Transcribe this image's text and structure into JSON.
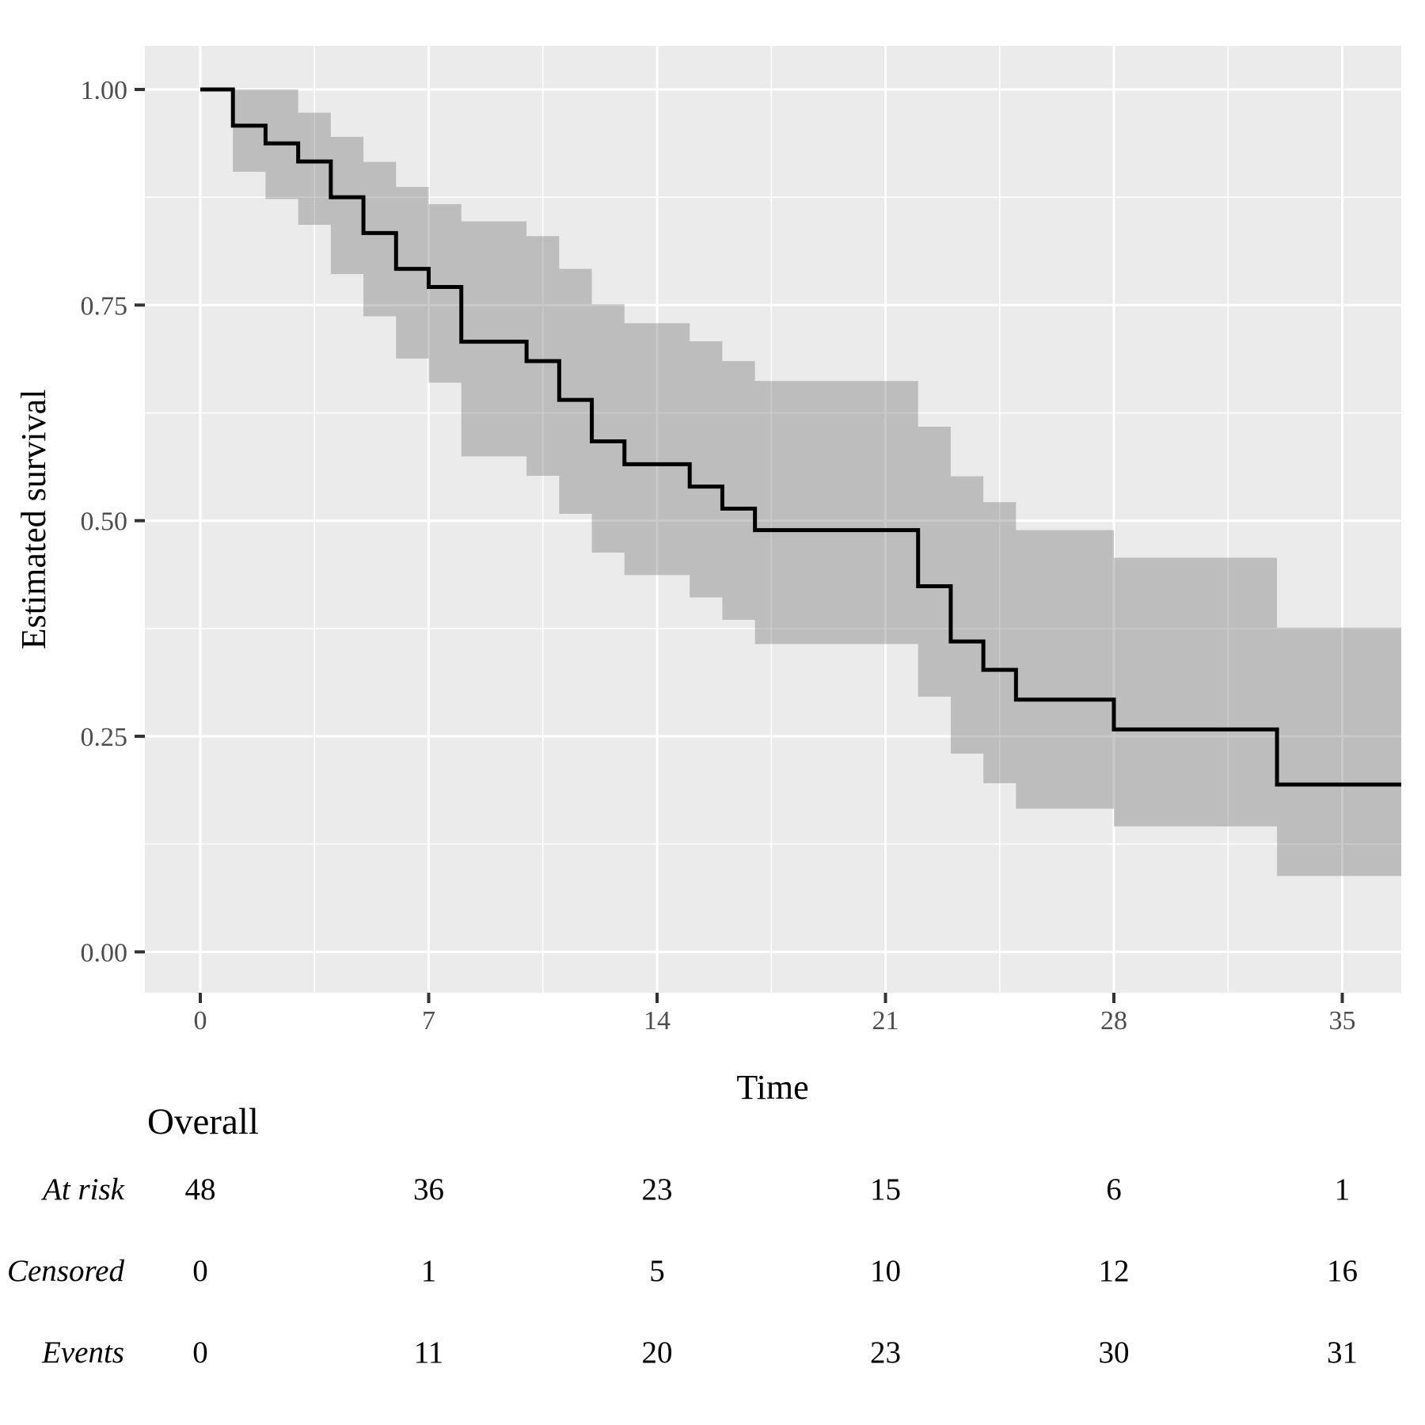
{
  "chart_data": {
    "type": "km-step",
    "title": "",
    "xlabel": "Time",
    "ylabel": "Estimated survival",
    "x_ticks": [
      0,
      7,
      14,
      21,
      28,
      35
    ],
    "y_ticks": [
      {
        "value": 1.0,
        "label": "1.00"
      },
      {
        "value": 0.75,
        "label": "0.75"
      },
      {
        "value": 0.5,
        "label": "0.50"
      },
      {
        "value": 0.25,
        "label": "0.25"
      },
      {
        "value": 0.0,
        "label": "0.00"
      }
    ],
    "xlim": [
      0,
      35
    ],
    "ylim": [
      0,
      1
    ],
    "grid": "on",
    "legend_position": "none",
    "surv_steps": [
      {
        "t": 0,
        "s": 1.0
      },
      {
        "t": 1,
        "s": 0.958
      },
      {
        "t": 2,
        "s": 0.9375
      },
      {
        "t": 3,
        "s": 0.9165
      },
      {
        "t": 4,
        "s": 0.875
      },
      {
        "t": 5,
        "s": 0.8335
      },
      {
        "t": 6,
        "s": 0.792
      },
      {
        "t": 7,
        "s": 0.771
      },
      {
        "t": 8,
        "s": 0.7075
      },
      {
        "t": 10,
        "s": 0.685
      },
      {
        "t": 11,
        "s": 0.64
      },
      {
        "t": 12,
        "s": 0.592
      },
      {
        "t": 13,
        "s": 0.5655
      },
      {
        "t": 15,
        "s": 0.5395
      },
      {
        "t": 16,
        "s": 0.514
      },
      {
        "t": 17,
        "s": 0.489
      },
      {
        "t": 22,
        "s": 0.424
      },
      {
        "t": 23,
        "s": 0.36
      },
      {
        "t": 24,
        "s": 0.327
      },
      {
        "t": 25,
        "s": 0.2925
      },
      {
        "t": 28,
        "s": 0.258
      },
      {
        "t": 33,
        "s": 0.194
      }
    ],
    "band_steps": [
      {
        "t": 1,
        "u": 1.0,
        "l": 0.9045
      },
      {
        "t": 2,
        "u": 1.0,
        "l": 0.873
      },
      {
        "t": 3,
        "u": 0.973,
        "l": 0.843
      },
      {
        "t": 4,
        "u": 0.945,
        "l": 0.786
      },
      {
        "t": 5,
        "u": 0.916,
        "l": 0.737
      },
      {
        "t": 6,
        "u": 0.887,
        "l": 0.688
      },
      {
        "t": 7,
        "u": 0.867,
        "l": 0.66
      },
      {
        "t": 8,
        "u": 0.847,
        "l": 0.5745
      },
      {
        "t": 10,
        "u": 0.83,
        "l": 0.552
      },
      {
        "t": 11,
        "u": 0.792,
        "l": 0.508
      },
      {
        "t": 12,
        "u": 0.751,
        "l": 0.463
      },
      {
        "t": 13,
        "u": 0.729,
        "l": 0.437
      },
      {
        "t": 15,
        "u": 0.708,
        "l": 0.411
      },
      {
        "t": 16,
        "u": 0.685,
        "l": 0.385
      },
      {
        "t": 17,
        "u": 0.662,
        "l": 0.357
      },
      {
        "t": 22,
        "u": 0.609,
        "l": 0.296
      },
      {
        "t": 23,
        "u": 0.5515,
        "l": 0.23
      },
      {
        "t": 24,
        "u": 0.5215,
        "l": 0.1955
      },
      {
        "t": 25,
        "u": 0.489,
        "l": 0.166
      },
      {
        "t": 28,
        "u": 0.457,
        "l": 0.1455
      },
      {
        "t": 33,
        "u": 0.376,
        "l": 0.088
      }
    ],
    "colors": {
      "panel_bg": "#ebebeb",
      "gridline": "#ffffff",
      "band": "rgba(127,127,127,0.42)",
      "curve": "#000000",
      "tick_label": "#4d4d4d",
      "tick_mark": "#333333"
    }
  },
  "risk_table": {
    "group_label": "Overall",
    "times": [
      0,
      7,
      14,
      21,
      28,
      35
    ],
    "rows": [
      {
        "label": "At risk",
        "values": [
          "48",
          "36",
          "23",
          "15",
          "6",
          "1"
        ]
      },
      {
        "label": "Censored",
        "values": [
          "0",
          "1",
          "5",
          "10",
          "12",
          "16"
        ]
      },
      {
        "label": "Events",
        "values": [
          "0",
          "11",
          "20",
          "23",
          "30",
          "31"
        ]
      }
    ]
  }
}
